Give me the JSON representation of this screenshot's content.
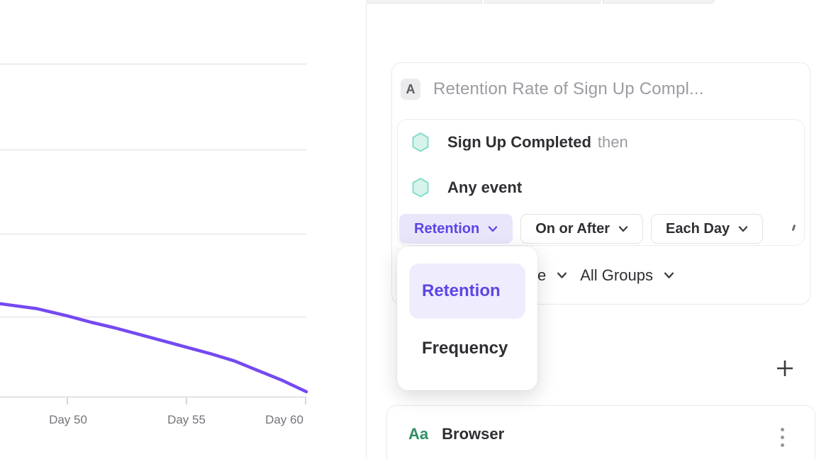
{
  "chart_data": {
    "type": "line",
    "title": "",
    "xlabel": "",
    "ylabel": "",
    "x_unit": "day",
    "xticks": [
      "Day 50",
      "Day 55",
      "Day 60"
    ],
    "xtick_days": [
      50,
      55,
      60
    ],
    "grid": "horizontal",
    "y_axis_labels_visible": false,
    "note": "y values estimated in unlabeled gridline units above the baseline axis",
    "series": [
      {
        "name": "retention-curve",
        "color": "#7449f0",
        "points": [
          {
            "day": 47.2,
            "value": 1.16
          },
          {
            "day": 48.7,
            "value": 1.1
          },
          {
            "day": 50,
            "value": 1.01
          },
          {
            "day": 51,
            "value": 0.93
          },
          {
            "day": 52,
            "value": 0.86
          },
          {
            "day": 53,
            "value": 0.78
          },
          {
            "day": 54,
            "value": 0.7
          },
          {
            "day": 55,
            "value": 0.62
          },
          {
            "day": 56,
            "value": 0.54
          },
          {
            "day": 57,
            "value": 0.45
          },
          {
            "day": 58,
            "value": 0.33
          },
          {
            "day": 59,
            "value": 0.21
          },
          {
            "day": 60,
            "value": 0.07
          }
        ]
      }
    ]
  },
  "builder": {
    "badge": "A",
    "title_placeholder": "Retention Rate of Sign Up Compl...",
    "events": [
      {
        "name": "Sign Up Completed",
        "suffix": "then"
      },
      {
        "name": "Any event",
        "suffix": ""
      }
    ],
    "controls": {
      "measure": "Retention",
      "timing": "On or After",
      "interval": "Each Day"
    },
    "secondary_row": {
      "fragment": "e",
      "groups": "All Groups"
    }
  },
  "dropdown": {
    "items": [
      "Retention",
      "Frequency"
    ],
    "selected": "Retention"
  },
  "actions": {
    "add": "+"
  },
  "property_card": {
    "type_icon": "Aa",
    "name": "Browser"
  },
  "colors": {
    "accent_purple": "#5a45e6",
    "accent_purple_bg": "#e9e6fb",
    "dropdown_selected_bg": "#efecfd",
    "line_purple": "#7449f0",
    "hex_fill": "#d6f3ec",
    "hex_stroke": "#85dcc9",
    "green_aa": "#2e8f63",
    "muted_text": "#9b9ba2",
    "dark_text": "#2f2f33",
    "border": "#e7e7ea",
    "grid": "#ebebed"
  }
}
